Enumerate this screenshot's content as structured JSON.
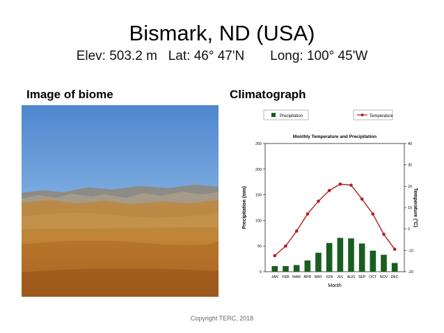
{
  "slide": {
    "title": "Bismark, ND  (USA)",
    "elev": "Elev: 503.2 m",
    "lat": "Lat: 46° 47'N",
    "long": "Long: 100° 45'W",
    "image_heading": "Image of biome",
    "chart_heading": "Climatograph",
    "copyright": "Copyright TERC, 2018"
  },
  "chart_data": {
    "type": "bar",
    "title": "Monthly Temperature and Precipitation",
    "xlabel": "Month",
    "categories": [
      "JAN",
      "FEB",
      "MAR",
      "APR",
      "MAY",
      "JUN",
      "JUL",
      "AUG",
      "SEP",
      "OCT",
      "NOV",
      "DEC"
    ],
    "series": [
      {
        "name": "Precipitation",
        "type": "bar",
        "axis": "left",
        "color": "#1a5e1f",
        "values": [
          11,
          11,
          13,
          22,
          37,
          56,
          66,
          65,
          55,
          41,
          33,
          17
        ]
      },
      {
        "name": "Temperature",
        "type": "line",
        "axis": "right",
        "color": "#b11d1d",
        "values": [
          -12.5,
          -8,
          -1,
          7,
          13,
          18,
          21,
          20.5,
          14,
          7,
          -2.5,
          -9.5
        ]
      }
    ],
    "ylabel_left": "Precipitation (mm)",
    "ylim_left": [
      0,
      250
    ],
    "yticks_left": [
      0,
      50,
      100,
      150,
      200,
      250
    ],
    "ylabel_right": "Temperature (°C)",
    "ylim_right": [
      -20,
      40
    ],
    "yticks_right": [
      -20,
      -10,
      0,
      10,
      20,
      30,
      40
    ],
    "legend": "top",
    "grid": false
  }
}
